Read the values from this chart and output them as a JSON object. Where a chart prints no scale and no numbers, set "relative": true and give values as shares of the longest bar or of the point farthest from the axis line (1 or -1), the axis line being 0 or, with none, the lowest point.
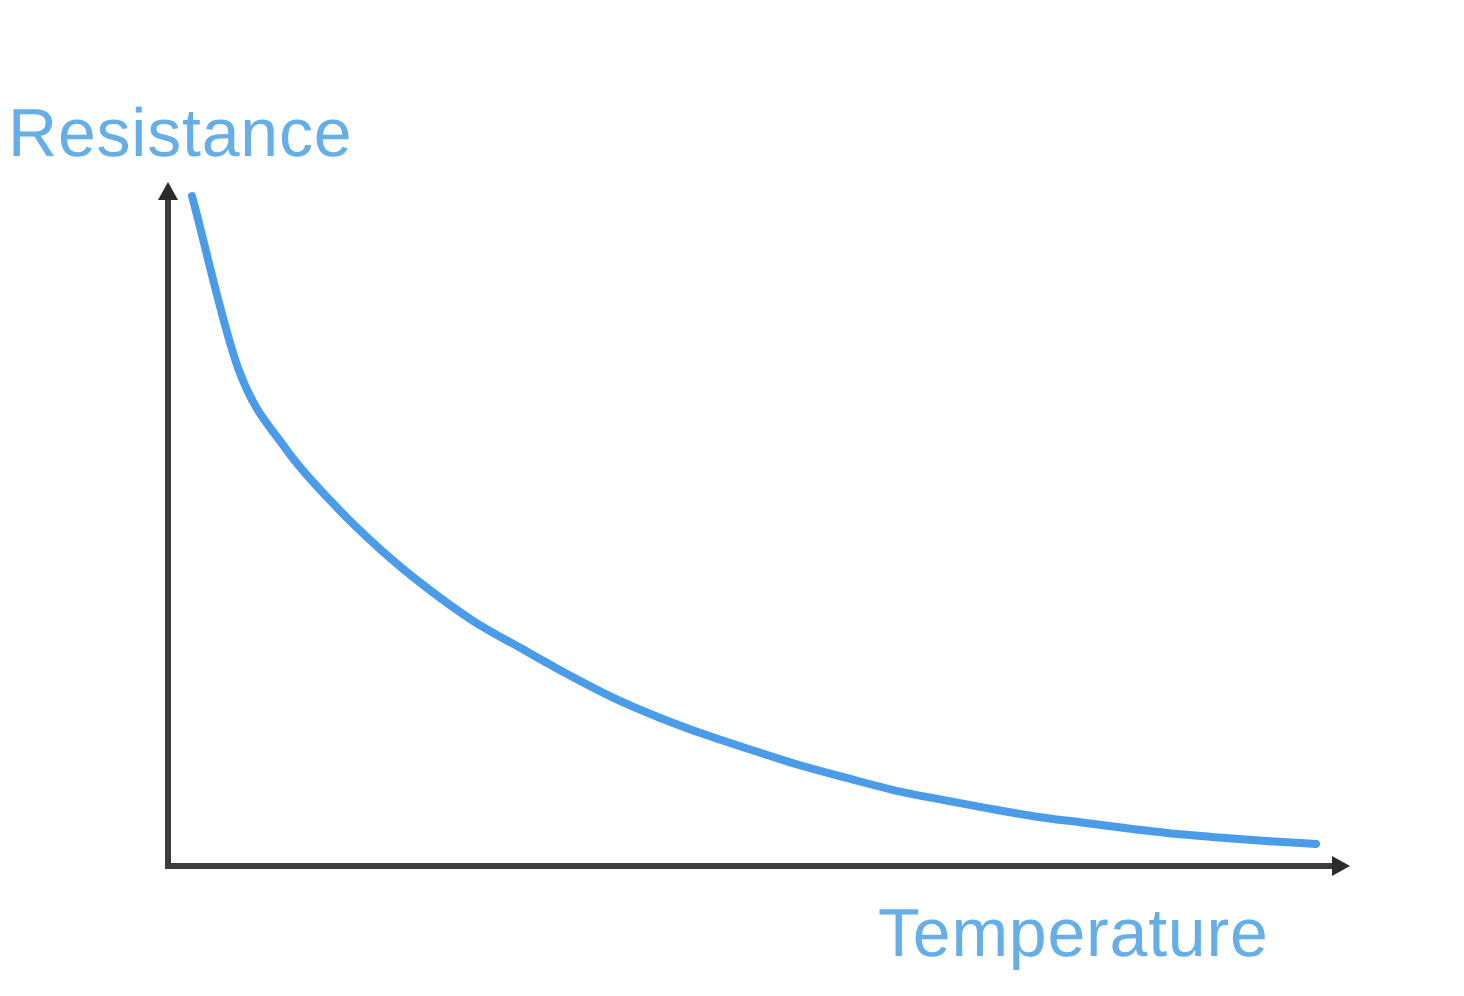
{
  "chart_data": {
    "type": "line",
    "xlabel": "Temperature",
    "ylabel": "Resistance",
    "relative": true,
    "marker": "none",
    "line_style": "solid",
    "categories": [
      null,
      null,
      null,
      null,
      null,
      null,
      null,
      null,
      null,
      null,
      null,
      null,
      null,
      null,
      null,
      null,
      null,
      null,
      null,
      null,
      null,
      null,
      null,
      null,
      null
    ],
    "series": [
      {
        "color": "#4a9be8",
        "values": [
          1,
          0.74,
          0.623,
          0.542,
          0.474,
          0.416,
          0.366,
          0.326,
          0.287,
          0.251,
          0.221,
          0.195,
          0.172,
          0.15,
          0.131,
          0.113,
          0.099,
          0.086,
          0.074,
          0.065,
          0.056,
          0.048,
          0.042,
          0.037,
          0.033
        ]
      }
    ]
  }
}
